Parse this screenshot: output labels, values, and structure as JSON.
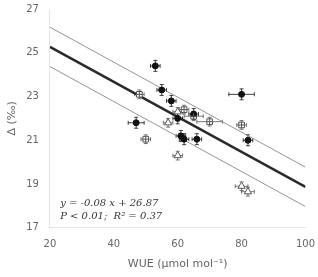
{
  "chart_data": {
    "type": "scatter",
    "xlabel": "WUE (μmol mol⁻¹)",
    "ylabel": "Δ (‰)",
    "xlim": [
      20,
      100
    ],
    "ylim": [
      17,
      27
    ],
    "xticks": [
      20,
      40,
      60,
      80,
      100
    ],
    "yticks": [
      17,
      19,
      21,
      23,
      25,
      27
    ],
    "grid": false,
    "annotations": [
      "y = -0.08 x + 26.87",
      "P < 0.01;  R² = 0.37"
    ],
    "series": [
      {
        "type": "line",
        "color": "#888888",
        "line_style": "thin",
        "x": [
          20,
          100
        ],
        "values": [
          26.17,
          19.77
        ]
      },
      {
        "type": "line",
        "color": "#888888",
        "line_style": "thin",
        "x": [
          20,
          100
        ],
        "values": [
          24.37,
          17.97
        ]
      },
      {
        "type": "line",
        "color": "#2a2a2a",
        "line_style": "solid",
        "x": [
          20,
          100
        ],
        "values": [
          25.27,
          18.87
        ]
      },
      {
        "type": "scatter",
        "color": "#111111",
        "marker": "circle",
        "x": [
          47,
          53,
          55,
          58,
          60,
          61,
          62,
          65,
          66,
          80,
          82
        ],
        "values": [
          21.8,
          24.4,
          23.3,
          22.8,
          22.0,
          21.2,
          21.05,
          22.2,
          21.05,
          23.1,
          21.0
        ],
        "xerr": [
          2.5,
          1.5,
          1.5,
          1.5,
          1.5,
          1.5,
          1.5,
          1.5,
          1.5,
          4,
          1.5
        ],
        "yerr": [
          0.25,
          0.25,
          0.25,
          0.25,
          0.25,
          0.25,
          0.25,
          0.25,
          0.25,
          0.25,
          0.25
        ]
      },
      {
        "type": "scatter",
        "color": "#555555",
        "marker": "open_square_cross",
        "x": [
          48,
          50,
          62,
          65,
          70,
          80
        ],
        "values": [
          23.1,
          21.05,
          22.4,
          22.1,
          21.85,
          21.7
        ],
        "xerr": [
          1.5,
          1.5,
          1.5,
          3,
          4,
          1.5
        ],
        "yerr": [
          0.2,
          0.2,
          0.2,
          0.2,
          0.2,
          0.2
        ]
      },
      {
        "type": "scatter",
        "color": "#555555",
        "marker": "open_triangle",
        "x": [
          57,
          60,
          80,
          82,
          60
        ],
        "values": [
          21.8,
          22.3,
          18.9,
          18.65,
          20.3
        ],
        "xerr": [
          1.5,
          1.5,
          2,
          2,
          1.5
        ],
        "yerr": [
          0.2,
          0.2,
          0.2,
          0.2,
          0.2
        ]
      }
    ]
  }
}
